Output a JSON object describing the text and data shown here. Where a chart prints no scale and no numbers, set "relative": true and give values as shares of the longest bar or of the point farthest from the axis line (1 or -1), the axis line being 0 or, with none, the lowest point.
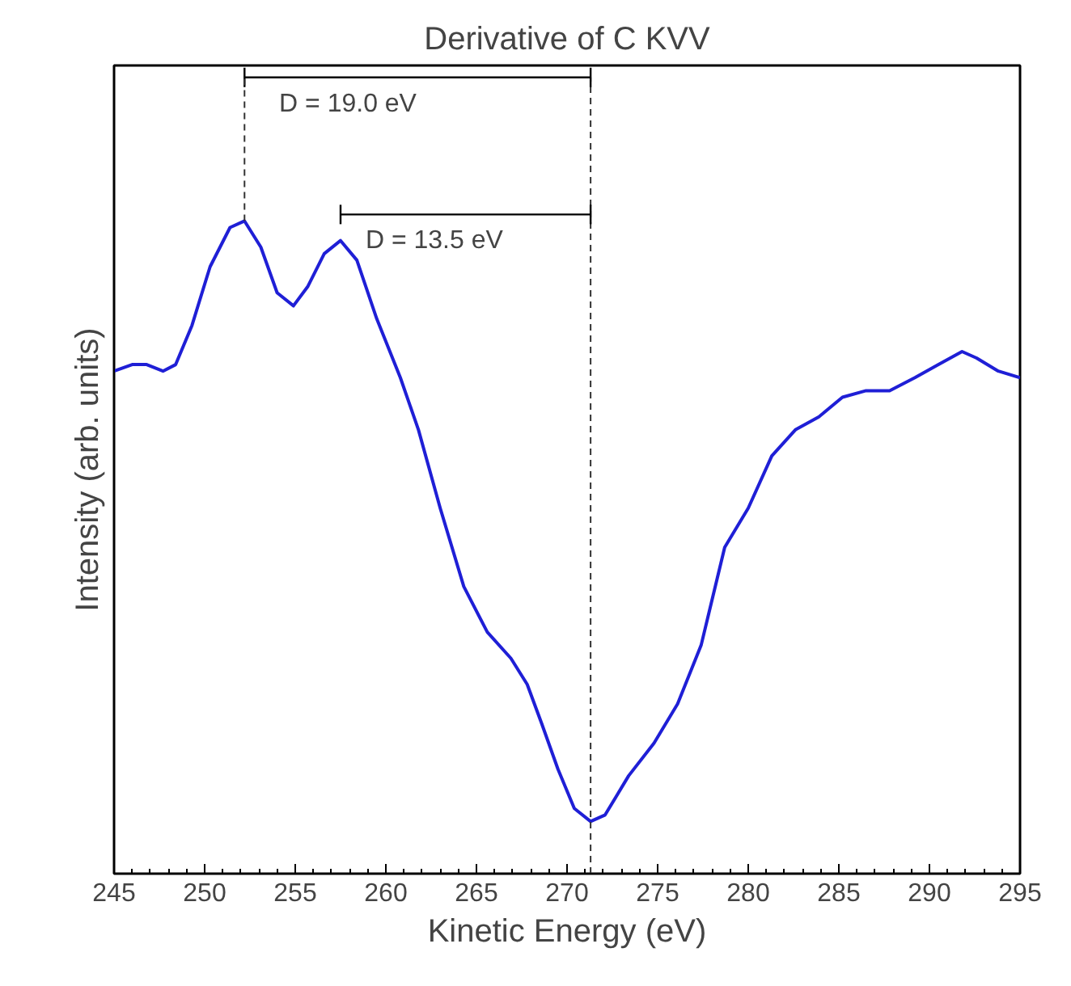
{
  "chart_data": {
    "type": "line",
    "title": "Derivative of C KVV",
    "xlabel": "Kinetic Energy (eV)",
    "ylabel": "Intensity (arb. units)",
    "relative": true,
    "grid": false,
    "marker": "none",
    "line_style": "solid",
    "xlim": [
      245,
      295
    ],
    "xticks": [
      245,
      250,
      255,
      260,
      265,
      270,
      275,
      280,
      285,
      290,
      295
    ],
    "series": [
      {
        "color": "#1f1fd6",
        "x": [
          245,
          246,
          246.8,
          247.7,
          248.4,
          249.3,
          250.3,
          251.4,
          252.2,
          253.1,
          254.0,
          254.9,
          255.7,
          256.6,
          257.5,
          258.4,
          259.5,
          260.8,
          261.8,
          263.0,
          264.3,
          265.6,
          266.9,
          267.8,
          268.6,
          269.5,
          270.4,
          271.3,
          272.1,
          273.4,
          274.8,
          276.1,
          277.4,
          278.7,
          280.0,
          281.3,
          282.6,
          283.9,
          285.2,
          286.5,
          287.8,
          289.2,
          290.5,
          291.8,
          292.6,
          293.8,
          295
        ],
        "values": [
          0.77,
          0.78,
          0.78,
          0.77,
          0.78,
          0.84,
          0.93,
          0.99,
          1.0,
          0.96,
          0.89,
          0.87,
          0.9,
          0.95,
          0.97,
          0.94,
          0.85,
          0.76,
          0.68,
          0.56,
          0.44,
          0.37,
          0.33,
          0.29,
          0.23,
          0.16,
          0.1,
          0.08,
          0.09,
          0.15,
          0.2,
          0.26,
          0.35,
          0.5,
          0.56,
          0.64,
          0.68,
          0.7,
          0.73,
          0.74,
          0.74,
          0.76,
          0.78,
          0.8,
          0.79,
          0.77,
          0.76
        ]
      }
    ],
    "ref_lines": [
      {
        "axis": "x",
        "value": 271.3,
        "label": null,
        "line_style": "dashed",
        "color": "#333333"
      }
    ],
    "annotations": [
      "D = 19.0 eV",
      "D = 13.5 eV"
    ]
  }
}
